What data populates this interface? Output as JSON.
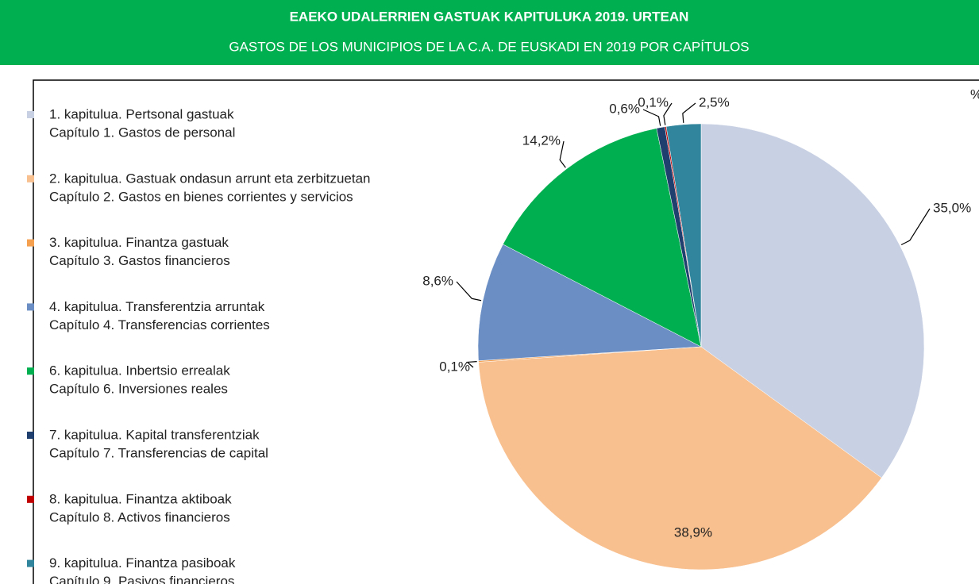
{
  "chart_data": {
    "type": "pie",
    "title": "EAEKO UDALERRIEN GASTUAK KAPITULUKA 2019. URTEAN",
    "subtitle": "GASTOS DE LOS MUNICIPIOS DE LA C.A. DE EUSKADI EN 2019 POR CAPÍTULOS",
    "unit": "%",
    "categories": [
      [
        "1. kapitulua. Pertsonal gastuak",
        "Capítulo 1. Gastos de personal"
      ],
      [
        "2. kapitulua. Gastuak ondasun arrunt eta zerbitzuetan",
        "Capítulo 2. Gastos en bienes corrientes y servicios"
      ],
      [
        "3. kapitulua. Finantza gastuak",
        "Capítulo 3. Gastos financieros"
      ],
      [
        "4. kapitulua. Transferentzia arruntak",
        "Capítulo 4. Transferencias corrientes"
      ],
      [
        "6. kapitulua. Inbertsio errealak",
        "Capítulo 6. Inversiones reales"
      ],
      [
        "7. kapitulua. Kapital transferentziak",
        "Capítulo 7. Transferencias de capital"
      ],
      [
        "8. kapitulua. Finantza aktiboak",
        "Capítulo 8. Activos financieros"
      ],
      [
        "9. kapitulua. Finantza pasiboak",
        "Capítulo 9. Pasivos financieros"
      ]
    ],
    "values": [
      35.0,
      38.9,
      0.1,
      8.6,
      14.2,
      0.6,
      0.1,
      2.5
    ],
    "value_labels": [
      "35,0%",
      "38,9%",
      "0,1%",
      "8,6%",
      "14,2%",
      "0,6%",
      "0,1%",
      "2,5%"
    ],
    "colors": [
      "#c8d1e4",
      "#f9c08f",
      "#f5a04f",
      "#6b8fc4",
      "#00b050",
      "#1f3f6e",
      "#c00000",
      "#31859c"
    ]
  }
}
